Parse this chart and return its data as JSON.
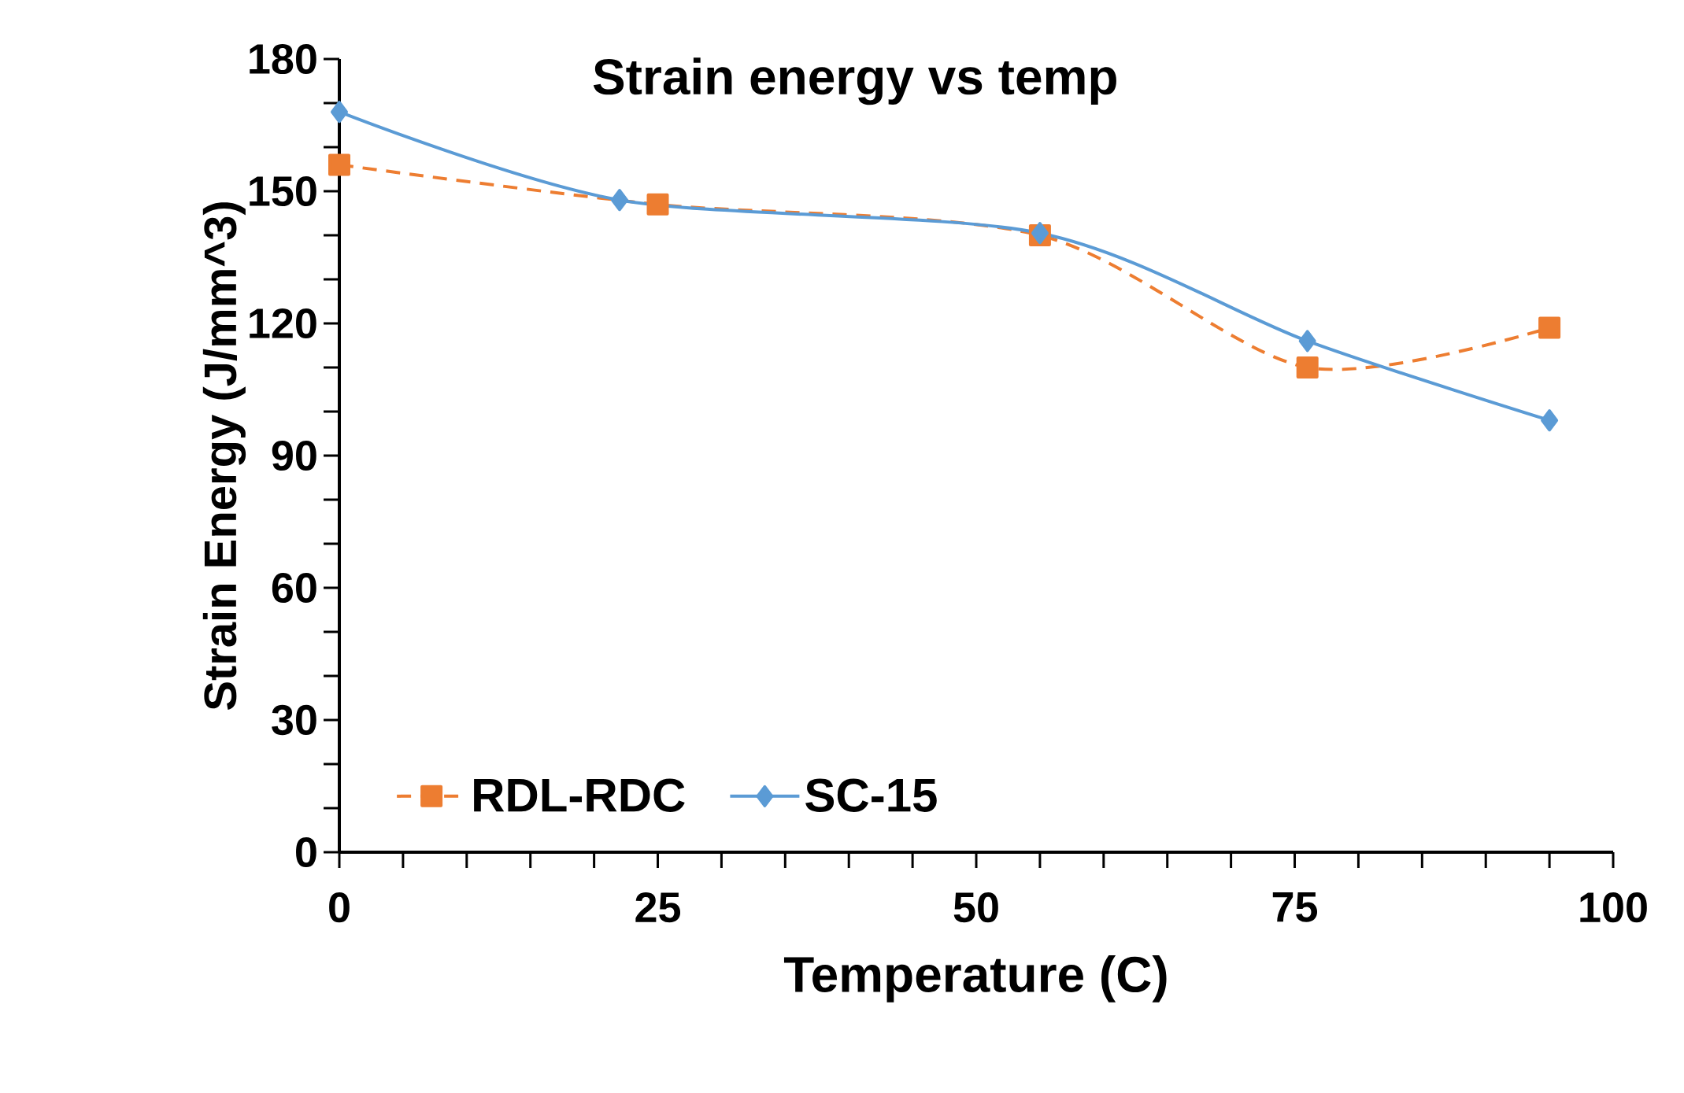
{
  "chart_data": {
    "type": "line",
    "title": "Strain energy vs temp",
    "xlabel": "Temperature (C)",
    "ylabel": "Strain Energy (J/mm^3)",
    "xlim": [
      0,
      100
    ],
    "ylim": [
      0,
      180
    ],
    "xticks": [
      0,
      25,
      50,
      75,
      100
    ],
    "yticks": [
      0,
      30,
      60,
      90,
      120,
      150,
      180
    ],
    "legend": "bottom left",
    "series": [
      {
        "name": "RDL-RDC",
        "color": "#ed7d31",
        "x": [
          0,
          25,
          55,
          76,
          95
        ],
        "values": [
          156,
          147,
          140,
          110,
          119
        ],
        "marker": "square",
        "line_style": "dashed"
      },
      {
        "name": "SC-15",
        "color": "#5b9bd5",
        "x": [
          0,
          22,
          55,
          76,
          95
        ],
        "values": [
          168,
          148,
          140.5,
          116,
          98
        ],
        "marker": "diamond",
        "line_style": "solid"
      }
    ]
  }
}
